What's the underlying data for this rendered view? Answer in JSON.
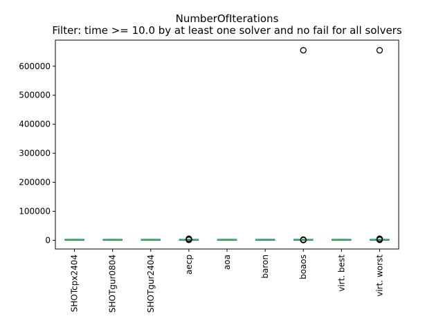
{
  "chart_data": {
    "type": "box",
    "title": "NumberOfIterations",
    "subtitle": "Filter: time >= 10.0 by at least one solver and no fail for all solvers",
    "xlabel": "",
    "ylabel": "",
    "ylim": [
      -30000,
      690000
    ],
    "yticks": [
      0,
      100000,
      200000,
      300000,
      400000,
      500000,
      600000
    ],
    "ytick_labels": [
      "0",
      "100000",
      "200000",
      "300000",
      "400000",
      "500000",
      "600000"
    ],
    "grid": false,
    "colors": {
      "box": "#1f77b4",
      "median": "#2ca02c",
      "outlier": "#000000"
    },
    "categories": [
      "SHOTcpx2404",
      "SHOTgur0804",
      "SHOTgur2404",
      "aecp",
      "aoa",
      "baron",
      "boaos",
      "virt. best",
      "virt. worst"
    ],
    "boxes": [
      {
        "name": "SHOTcpx2404",
        "q1": 0,
        "median": 0,
        "q3": 50,
        "whisker_low": 0,
        "whisker_high": 200,
        "outliers": []
      },
      {
        "name": "SHOTgur0804",
        "q1": 0,
        "median": 0,
        "q3": 50,
        "whisker_low": 0,
        "whisker_high": 200,
        "outliers": []
      },
      {
        "name": "SHOTgur2404",
        "q1": 0,
        "median": 0,
        "q3": 50,
        "whisker_low": 0,
        "whisker_high": 200,
        "outliers": []
      },
      {
        "name": "aecp",
        "q1": 0,
        "median": 100,
        "q3": 400,
        "whisker_low": 0,
        "whisker_high": 1000,
        "outliers": [
          1500,
          2500,
          4000,
          5500
        ]
      },
      {
        "name": "aoa",
        "q1": 0,
        "median": 0,
        "q3": 50,
        "whisker_low": 0,
        "whisker_high": 200,
        "outliers": []
      },
      {
        "name": "baron",
        "q1": 0,
        "median": 0,
        "q3": 50,
        "whisker_low": 0,
        "whisker_high": 200,
        "outliers": []
      },
      {
        "name": "boaos",
        "q1": 0,
        "median": 0,
        "q3": 100,
        "whisker_low": 0,
        "whisker_high": 300,
        "outliers": [
          800,
          1500,
          2500,
          655000
        ]
      },
      {
        "name": "virt. best",
        "q1": 0,
        "median": 0,
        "q3": 50,
        "whisker_low": 0,
        "whisker_high": 200,
        "outliers": []
      },
      {
        "name": "virt. worst",
        "q1": 0,
        "median": 100,
        "q3": 400,
        "whisker_low": 0,
        "whisker_high": 1000,
        "outliers": [
          1500,
          2500,
          4000,
          5500,
          655000
        ]
      }
    ]
  }
}
